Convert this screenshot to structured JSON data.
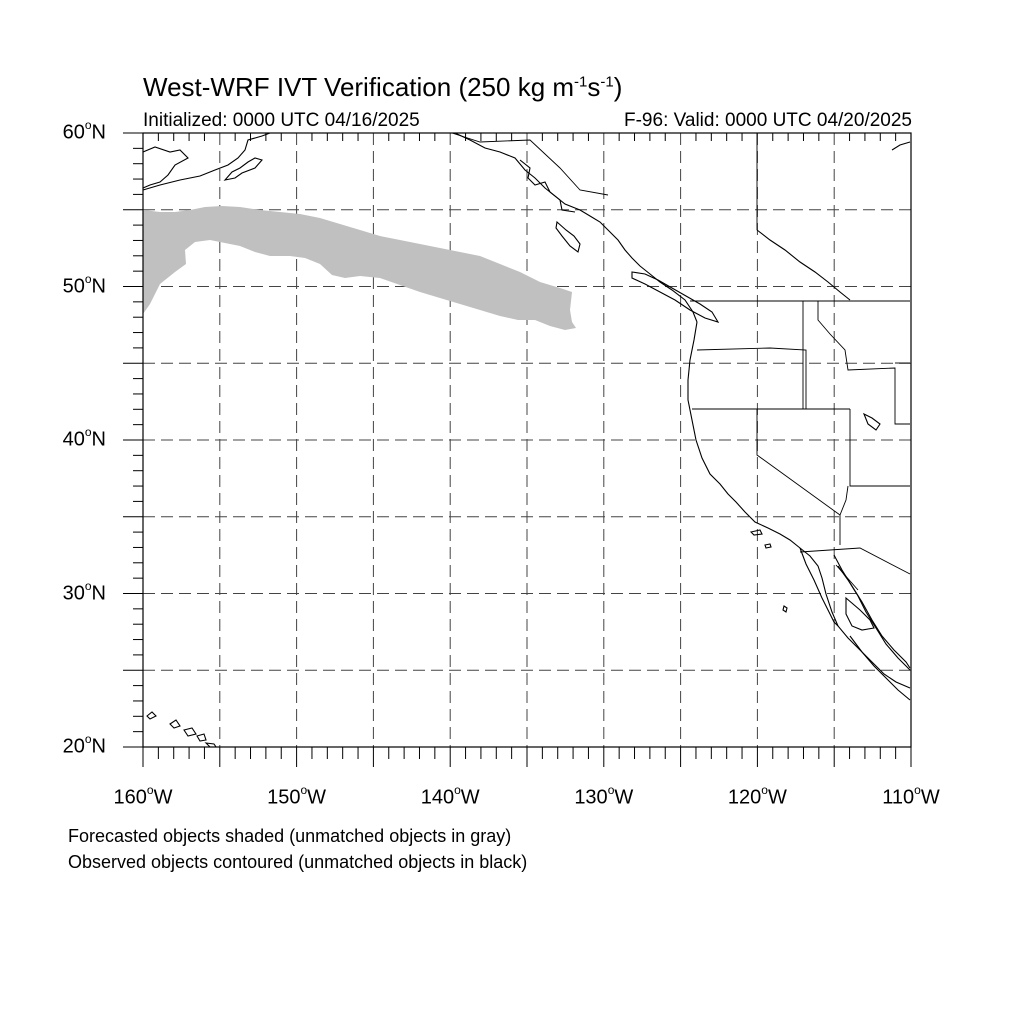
{
  "title": {
    "main": "West-WRF IVT Verification (250 kg m",
    "exp1": "-1",
    "mid": "s",
    "exp2": "-1",
    "end": ")"
  },
  "initialized": "Initialized: 0000 UTC 04/16/2025",
  "valid": "F-96: Valid: 0000 UTC 04/20/2025",
  "lat_labels": [
    {
      "lat": 60,
      "text": "60",
      "hemi": "N"
    },
    {
      "lat": 50,
      "text": "50",
      "hemi": "N"
    },
    {
      "lat": 40,
      "text": "40",
      "hemi": "N"
    },
    {
      "lat": 30,
      "text": "30",
      "hemi": "N"
    },
    {
      "lat": 20,
      "text": "20",
      "hemi": "N"
    }
  ],
  "lon_labels": [
    {
      "lon": -160,
      "text": "160",
      "hemi": "W"
    },
    {
      "lon": -150,
      "text": "150",
      "hemi": "W"
    },
    {
      "lon": -140,
      "text": "140",
      "hemi": "W"
    },
    {
      "lon": -130,
      "text": "130",
      "hemi": "W"
    },
    {
      "lon": -120,
      "text": "120",
      "hemi": "W"
    },
    {
      "lon": -110,
      "text": "110",
      "hemi": "W"
    }
  ],
  "footnotes": [
    "Forecasted objects shaded (unmatched objects in gray)",
    "Observed objects contoured (unmatched objects in black)"
  ],
  "map": {
    "lon_range": [
      -160,
      -110
    ],
    "lat_range": [
      20,
      60
    ],
    "grid_spacing_deg": 5,
    "unmatched_forecast_color": "#c0c0c0",
    "coast_color": "#000000"
  }
}
